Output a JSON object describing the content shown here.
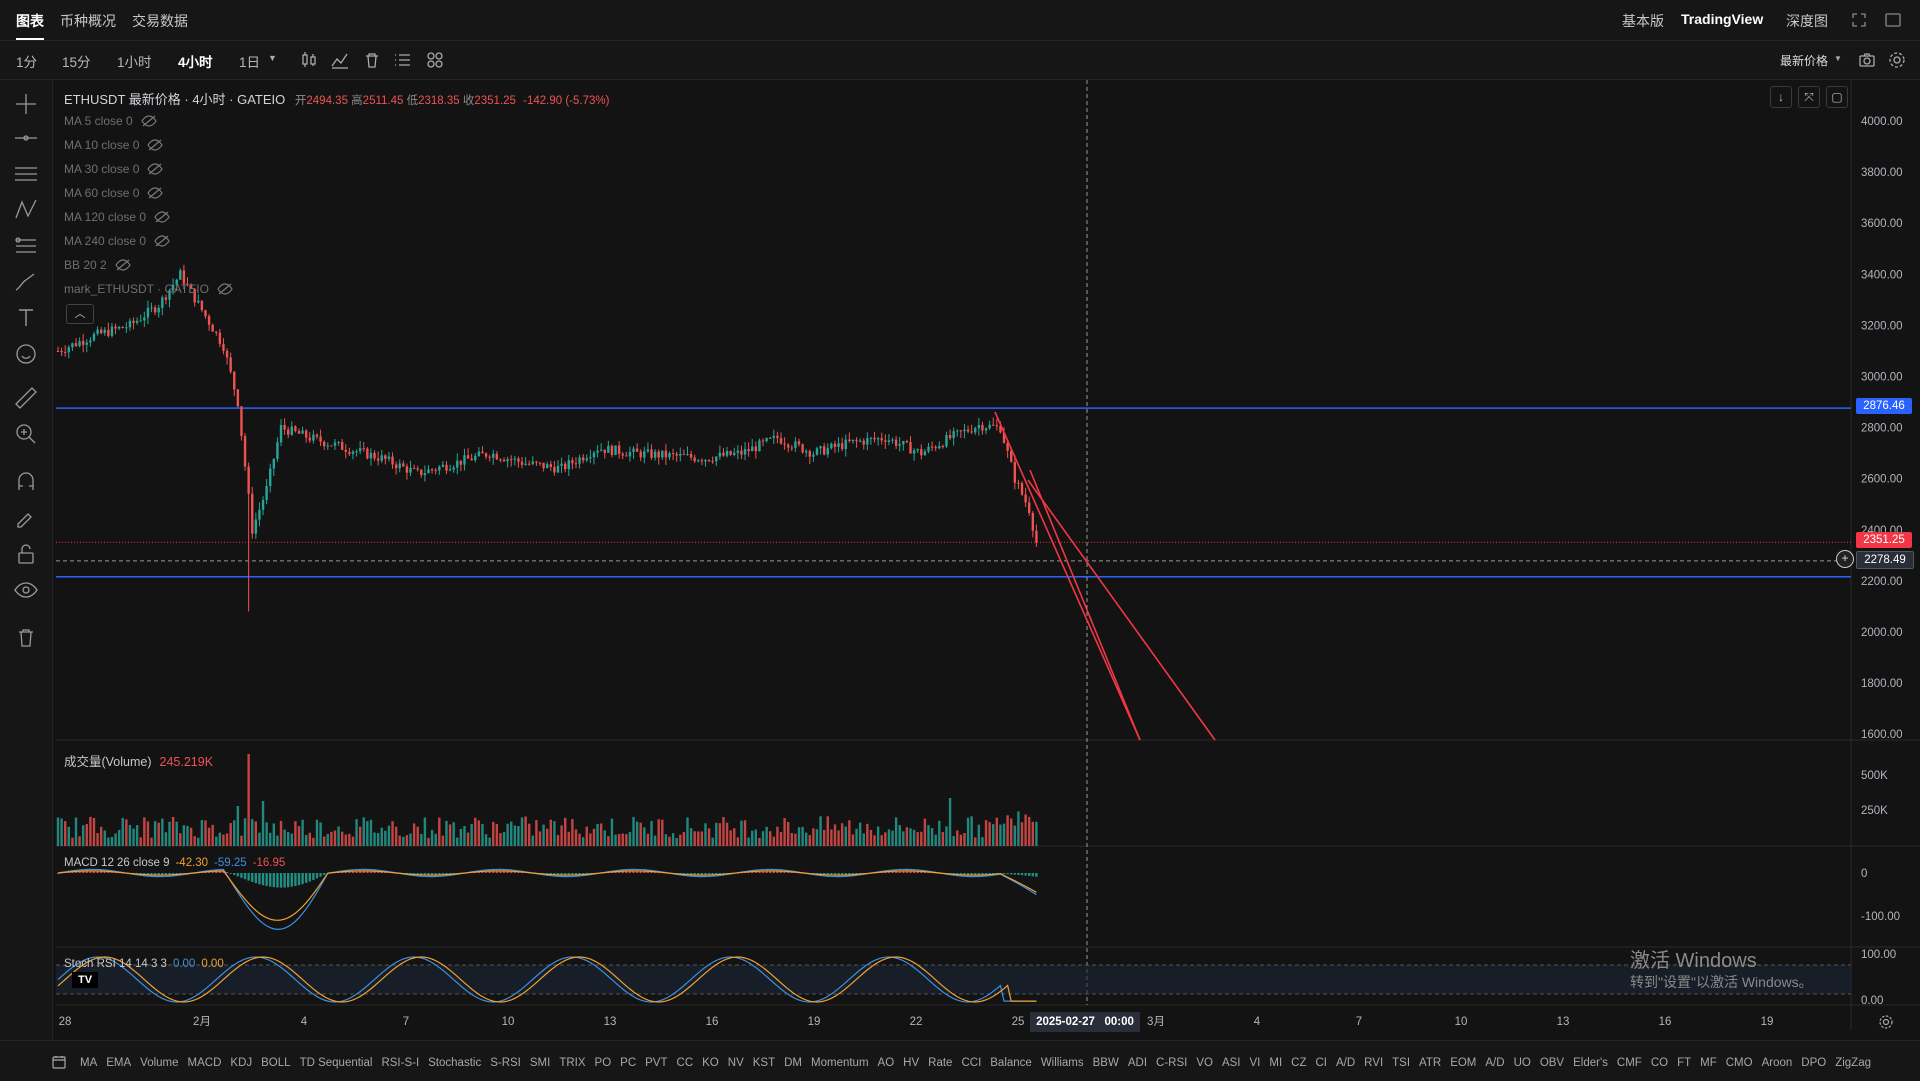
{
  "topnav": {
    "tabs": [
      "图表",
      "币种概况",
      "交易数据"
    ],
    "active_index": 0,
    "right": [
      "基本版",
      "TradingView",
      "深度图"
    ]
  },
  "toolbar": {
    "timeframes": [
      "1分",
      "15分",
      "1小时",
      "4小时",
      "1日"
    ],
    "active": "4小时",
    "price_mode": "最新价格"
  },
  "legend": {
    "symbol": "ETHUSDT 最新价格 · 4小时 · GATEIO",
    "open_label": "开",
    "open": "2494.35",
    "high_label": "高",
    "high": "2511.45",
    "low_label": "低",
    "low": "2318.35",
    "close_label": "收",
    "close": "2351.25",
    "change": "-142.90 (-5.73%)",
    "indicators": [
      "MA 5 close 0",
      "MA 10 close 0",
      "MA 30 close 0",
      "MA 60 close 0",
      "MA 120 close 0",
      "MA 240 close 0",
      "BB 20 2",
      "mark_ETHUSDT · GATEIO"
    ]
  },
  "price_axis": {
    "ticks": [
      "4000.00",
      "3800.00",
      "3600.00",
      "3400.00",
      "3200.00",
      "3000.00",
      "2800.00",
      "2600.00",
      "2400.00",
      "2200.00",
      "2000.00",
      "1800.00",
      "1600.00"
    ]
  },
  "price_tags": {
    "hline_top": "2876.46",
    "last": "2351.25",
    "crosshair": "2278.49"
  },
  "volume": {
    "label": "成交量(Volume)",
    "value": "245.219K",
    "ticks": [
      "500K",
      "250K"
    ]
  },
  "macd": {
    "label": "MACD 12 26 close 9",
    "v1": "-42.30",
    "v2": "-59.25",
    "v3": "-16.95",
    "ticks": [
      "0",
      "-100.00"
    ]
  },
  "stoch": {
    "label": "Stoch RSI 14 14 3 3",
    "k": "0.00",
    "d": "0.00",
    "ticks": [
      "100.00",
      "0.00"
    ]
  },
  "time_axis": {
    "labels": [
      "28",
      "2月",
      "4",
      "7",
      "10",
      "13",
      "16",
      "19",
      "22",
      "25",
      "3月",
      "4",
      "7",
      "10",
      "13",
      "16",
      "19"
    ],
    "crosshair_date": "2025-02-27",
    "crosshair_time": "00:00"
  },
  "watermark": {
    "line1": "激活 Windows",
    "line2": "转到\"设置\"以激活 Windows。"
  },
  "indicator_bar": [
    "MA",
    "EMA",
    "Volume",
    "MACD",
    "KDJ",
    "BOLL",
    "TD Sequential",
    "RSI-S-I",
    "Stochastic",
    "S-RSI",
    "SMI",
    "TRIX",
    "PO",
    "PC",
    "PVT",
    "CC",
    "KO",
    "NV",
    "KST",
    "DM",
    "Momentum",
    "AO",
    "HV",
    "Rate",
    "CCI",
    "Balance",
    "Williams",
    "BBW",
    "ADI",
    "C-RSI",
    "VO",
    "ASI",
    "VI",
    "MI",
    "CZ",
    "CI",
    "A/D",
    "RVI",
    "TSI",
    "ATR",
    "EOM",
    "A/D",
    "UO",
    "OBV",
    "Elder's",
    "CMF",
    "CO",
    "FT",
    "MF",
    "CMO",
    "Aroon",
    "DPO",
    "ZigZag"
  ],
  "colors": {
    "up": "#26a69a",
    "down": "#ef5350",
    "hline": "#2962ff",
    "trend": "#f23645",
    "bg": "#131313"
  }
}
